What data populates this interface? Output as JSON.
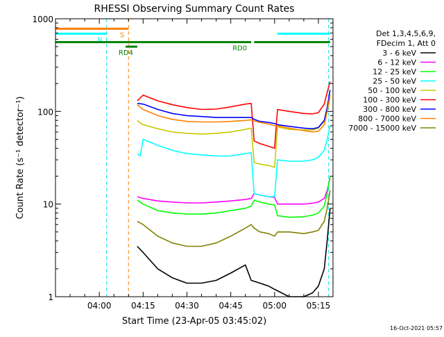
{
  "chart_data": {
    "type": "line",
    "title": "RHESSI Observing Summary Count Rates",
    "xlabel": "Start Time (23-Apr-05 03:45:02)",
    "ylabel": "Count Rate (s⁻¹ detector⁻¹)",
    "x_units": "minutes since 03:45:02",
    "xlim": [
      0,
      95
    ],
    "ylim": [
      1,
      1000
    ],
    "y_scale": "log",
    "x_ticks": [
      {
        "label": "04:00",
        "value": 15
      },
      {
        "label": "04:15",
        "value": 30
      },
      {
        "label": "04:30",
        "value": 45
      },
      {
        "label": "04:45",
        "value": 60
      },
      {
        "label": "05:00",
        "value": 75
      },
      {
        "label": "05:15",
        "value": 90
      }
    ],
    "y_ticks": [
      {
        "label": "1",
        "value": 1
      },
      {
        "label": "10",
        "value": 10
      },
      {
        "label": "100",
        "value": 100
      },
      {
        "label": "1000",
        "value": 1000
      }
    ],
    "legend_header": [
      "Det 1,3,4,5,6,9,",
      "FDecim 1, Att 0"
    ],
    "legend_placement": "right",
    "footer_date": "16-Oct-2021 05:57",
    "flags": [
      {
        "label": "S",
        "color": "#ff8000",
        "y": 780,
        "segments": [
          [
            0,
            25
          ]
        ]
      },
      {
        "label": "N",
        "color": "#00ffff",
        "y": 690,
        "segments": [
          [
            0,
            17.5
          ],
          [
            76,
            94
          ]
        ]
      },
      {
        "label": "RD0",
        "color": "#008000",
        "y": 560,
        "segments": [
          [
            0,
            67
          ],
          [
            68,
            94
          ]
        ]
      },
      {
        "label": "RD4",
        "color": "#008000",
        "y": 500,
        "segments": [
          [
            24,
            28
          ]
        ]
      }
    ],
    "vlines": [
      {
        "x": 17.5,
        "color": "#00e0e0",
        "style": "dashed"
      },
      {
        "x": 25,
        "color": "#ff8000",
        "style": "dashed"
      },
      {
        "x": 93.5,
        "color": "#00e0e0",
        "style": "dashed"
      }
    ],
    "series": [
      {
        "name": "3 - 6 keV",
        "color": "#000000",
        "x": [
          28,
          30,
          35,
          40,
          45,
          50,
          55,
          60,
          65,
          67,
          70,
          73,
          75,
          80,
          85,
          88,
          90,
          92,
          93,
          94
        ],
        "y": [
          3.5,
          3.0,
          2.0,
          1.6,
          1.4,
          1.4,
          1.5,
          1.8,
          2.2,
          1.5,
          1.4,
          1.3,
          1.2,
          1.0,
          1.0,
          1.1,
          1.3,
          2.0,
          4.0,
          9.0
        ]
      },
      {
        "name": "6 - 12 keV",
        "color": "#ff00ff",
        "x": [
          28,
          30,
          35,
          40,
          45,
          50,
          55,
          60,
          65,
          67,
          68,
          70,
          73,
          75,
          76,
          80,
          85,
          88,
          90,
          92,
          93,
          94
        ],
        "y": [
          12.0,
          11.5,
          10.8,
          10.5,
          10.3,
          10.3,
          10.5,
          10.8,
          11.2,
          11.5,
          13.0,
          12.5,
          12.0,
          11.8,
          10.0,
          10.0,
          10.0,
          10.2,
          10.5,
          11.5,
          14.0,
          19.0
        ]
      },
      {
        "name": "12 - 25 keV",
        "color": "#00ff00",
        "x": [
          28,
          30,
          35,
          40,
          45,
          50,
          55,
          60,
          65,
          67,
          68,
          70,
          73,
          75,
          76,
          80,
          85,
          88,
          90,
          92,
          93,
          94
        ],
        "y": [
          11.0,
          10.0,
          8.5,
          8.0,
          7.8,
          7.8,
          8.0,
          8.5,
          9.0,
          9.5,
          11.0,
          10.5,
          10.0,
          9.8,
          7.5,
          7.2,
          7.3,
          7.6,
          8.0,
          9.5,
          13.0,
          20.0
        ]
      },
      {
        "name": "25 - 50 keV",
        "color": "#00ffff",
        "x": [
          28,
          29,
          30,
          35,
          40,
          45,
          50,
          55,
          60,
          65,
          67,
          68,
          70,
          73,
          75,
          76,
          80,
          85,
          88,
          90,
          92,
          93,
          94
        ],
        "y": [
          35,
          33,
          50,
          43,
          38,
          35,
          34,
          33,
          33,
          35,
          36,
          13,
          12.5,
          12,
          12,
          30,
          29,
          29,
          30,
          32,
          38,
          50,
          70
        ]
      },
      {
        "name": "50 - 100 keV",
        "color": "#c8c800",
        "x": [
          28,
          29,
          30,
          35,
          40,
          45,
          50,
          55,
          60,
          65,
          67,
          68,
          70,
          73,
          75,
          76,
          80,
          85,
          88,
          90,
          92,
          93,
          94
        ],
        "y": [
          80,
          75,
          72,
          65,
          60,
          58,
          57,
          58,
          60,
          64,
          66,
          28,
          27,
          26,
          25,
          68,
          64,
          63,
          63,
          66,
          78,
          100,
          140
        ]
      },
      {
        "name": "100 - 300 keV",
        "color": "#ff0000",
        "x": [
          28,
          30,
          35,
          40,
          45,
          50,
          55,
          60,
          65,
          67,
          68,
          70,
          73,
          75,
          76,
          80,
          85,
          88,
          90,
          92,
          93,
          94
        ],
        "y": [
          130,
          150,
          130,
          118,
          110,
          105,
          106,
          112,
          120,
          122,
          48,
          45,
          42,
          40,
          105,
          100,
          95,
          94,
          97,
          120,
          160,
          210
        ]
      },
      {
        "name": "300 - 800 keV",
        "color": "#0000ff",
        "x": [
          28,
          30,
          35,
          40,
          45,
          50,
          55,
          60,
          65,
          67,
          68,
          70,
          73,
          75,
          76,
          80,
          85,
          88,
          90,
          92,
          93,
          94
        ],
        "y": [
          122,
          120,
          105,
          95,
          90,
          88,
          86,
          86,
          86,
          86,
          82,
          78,
          76,
          74,
          72,
          69,
          66,
          65,
          67,
          80,
          110,
          170
        ]
      },
      {
        "name": "800 - 7000 keV",
        "color": "#ff8000",
        "x": [
          28,
          30,
          35,
          40,
          45,
          50,
          55,
          60,
          65,
          67,
          68,
          70,
          73,
          75,
          76,
          80,
          85,
          88,
          90,
          92,
          93,
          94
        ],
        "y": [
          118,
          105,
          90,
          82,
          78,
          77,
          77,
          78,
          80,
          81,
          79,
          76,
          73,
          70,
          70,
          66,
          62,
          60,
          61,
          72,
          100,
          150
        ]
      },
      {
        "name": "7000 - 15000 keV",
        "color": "#808000",
        "x": [
          28,
          30,
          35,
          40,
          45,
          50,
          55,
          60,
          65,
          67,
          68,
          70,
          73,
          75,
          76,
          80,
          85,
          88,
          90,
          92,
          93,
          94
        ],
        "y": [
          6.5,
          6.0,
          4.5,
          3.8,
          3.5,
          3.5,
          3.8,
          4.5,
          5.5,
          6.0,
          5.5,
          5.0,
          4.8,
          4.5,
          5.0,
          5.0,
          4.8,
          5.0,
          5.2,
          6.5,
          9.0,
          14.0
        ]
      }
    ]
  }
}
